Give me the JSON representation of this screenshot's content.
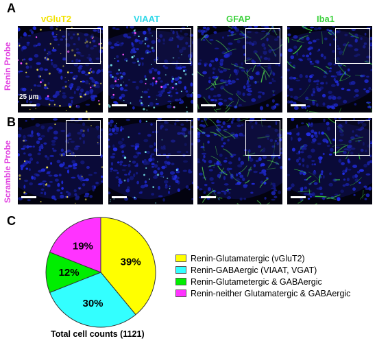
{
  "panels": {
    "a": "A",
    "b": "B",
    "c": "C"
  },
  "columns": [
    {
      "label": "vGluT2",
      "color": "#f2e200"
    },
    {
      "label": "VIAAT",
      "color": "#2fd8e8"
    },
    {
      "label": "GFAP",
      "color": "#3fd23f"
    },
    {
      "label": "Iba1",
      "color": "#3fd23f"
    }
  ],
  "rows": [
    {
      "label": "Renin Probe"
    },
    {
      "label": "Scramble Probe"
    }
  ],
  "scale_label": "25 µm",
  "chart_data": {
    "type": "pie",
    "title": "",
    "categories": [
      "Renin-Glutamatergic (vGluT2)",
      "Renin-GABAergic (VIAAT, VGAT)",
      "Renin-Glutametergic & GABAergic",
      "Renin-neither Glutamatergic & GABAergic"
    ],
    "values": [
      39,
      30,
      12,
      19
    ],
    "labels": [
      "39%",
      "30%",
      "12%",
      "19%"
    ],
    "colors": [
      "#ffff00",
      "#33ffff",
      "#00ee00",
      "#ff33ff"
    ],
    "legend_position": "right"
  },
  "total_label": "Total cell counts (1121)"
}
